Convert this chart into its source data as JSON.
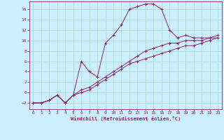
{
  "xlabel": "Windchill (Refroidissement éolien,°C)",
  "bg_color": "#cceeff",
  "line_color": "#882277",
  "grid_color": "#aaddcc",
  "xlim": [
    -0.5,
    23.5
  ],
  "ylim": [
    -3.2,
    17.5
  ],
  "xticks": [
    0,
    1,
    2,
    3,
    4,
    5,
    6,
    7,
    8,
    9,
    10,
    11,
    12,
    13,
    14,
    15,
    16,
    17,
    18,
    19,
    20,
    21,
    22,
    23
  ],
  "yticks": [
    -2,
    0,
    2,
    4,
    6,
    8,
    10,
    12,
    14,
    16
  ],
  "series1_x": [
    0,
    1,
    2,
    3,
    4,
    5,
    6,
    7,
    8,
    9,
    10,
    11,
    12,
    13,
    14,
    15,
    16,
    17,
    18,
    19,
    20,
    21,
    22,
    23
  ],
  "series1_y": [
    -2,
    -2,
    -1.5,
    -0.5,
    -2,
    -0.5,
    6,
    4,
    3,
    9.5,
    11,
    13,
    16,
    16.5,
    17,
    17,
    16,
    12,
    10.5,
    11,
    10.5,
    10.5,
    10.5,
    11
  ],
  "series2_x": [
    0,
    1,
    2,
    3,
    4,
    5,
    6,
    7,
    8,
    9,
    10,
    11,
    12,
    13,
    14,
    15,
    16,
    17,
    18,
    19,
    20,
    21,
    22,
    23
  ],
  "series2_y": [
    -2,
    -2,
    -1.5,
    -0.5,
    -2,
    -0.5,
    0.5,
    1,
    2,
    3,
    4,
    5,
    6,
    7,
    8,
    8.5,
    9,
    9.5,
    9.5,
    10,
    10,
    10,
    10.5,
    10.5
  ],
  "series3_x": [
    0,
    1,
    2,
    3,
    4,
    5,
    6,
    7,
    8,
    9,
    10,
    11,
    12,
    13,
    14,
    15,
    16,
    17,
    18,
    19,
    20,
    21,
    22,
    23
  ],
  "series3_y": [
    -2,
    -2,
    -1.5,
    -0.5,
    -2,
    -0.5,
    0,
    0.5,
    1.5,
    2.5,
    3.5,
    4.5,
    5.5,
    6,
    6.5,
    7,
    7.5,
    8,
    8.5,
    9,
    9,
    9.5,
    10,
    10.5
  ]
}
